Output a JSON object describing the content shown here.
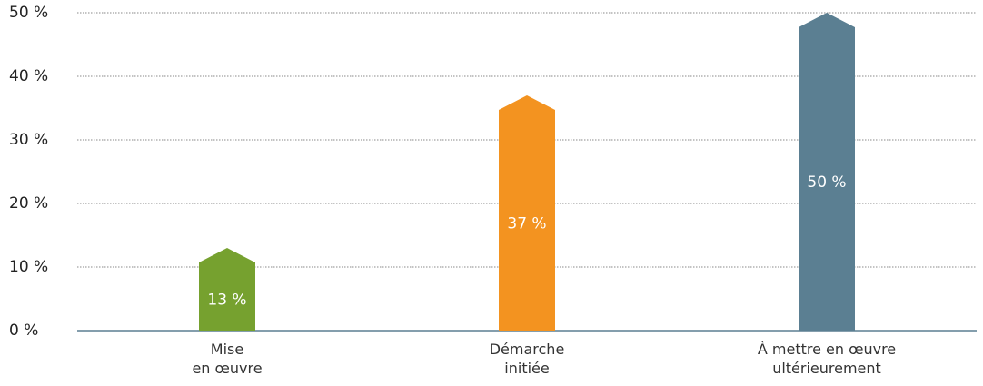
{
  "chart_data": {
    "type": "bar",
    "categories": [
      "Mise\nen œuvre",
      "Démarche\ninitiée",
      "À mettre en œuvre\nultérieurement"
    ],
    "values": [
      13,
      37,
      50
    ],
    "value_labels": [
      "13 %",
      "37 %",
      "50 %"
    ],
    "colors": [
      "#76a12f",
      "#f39320",
      "#5b7f92"
    ],
    "ylim": [
      0,
      50
    ],
    "yticks": [
      {
        "value": 0,
        "label": "0 %"
      },
      {
        "value": 10,
        "label": "10 %"
      },
      {
        "value": 20,
        "label": "20 %"
      },
      {
        "value": 30,
        "label": "30 %"
      },
      {
        "value": 40,
        "label": "40 %"
      },
      {
        "value": 50,
        "label": "50 %"
      }
    ],
    "grid": true
  }
}
